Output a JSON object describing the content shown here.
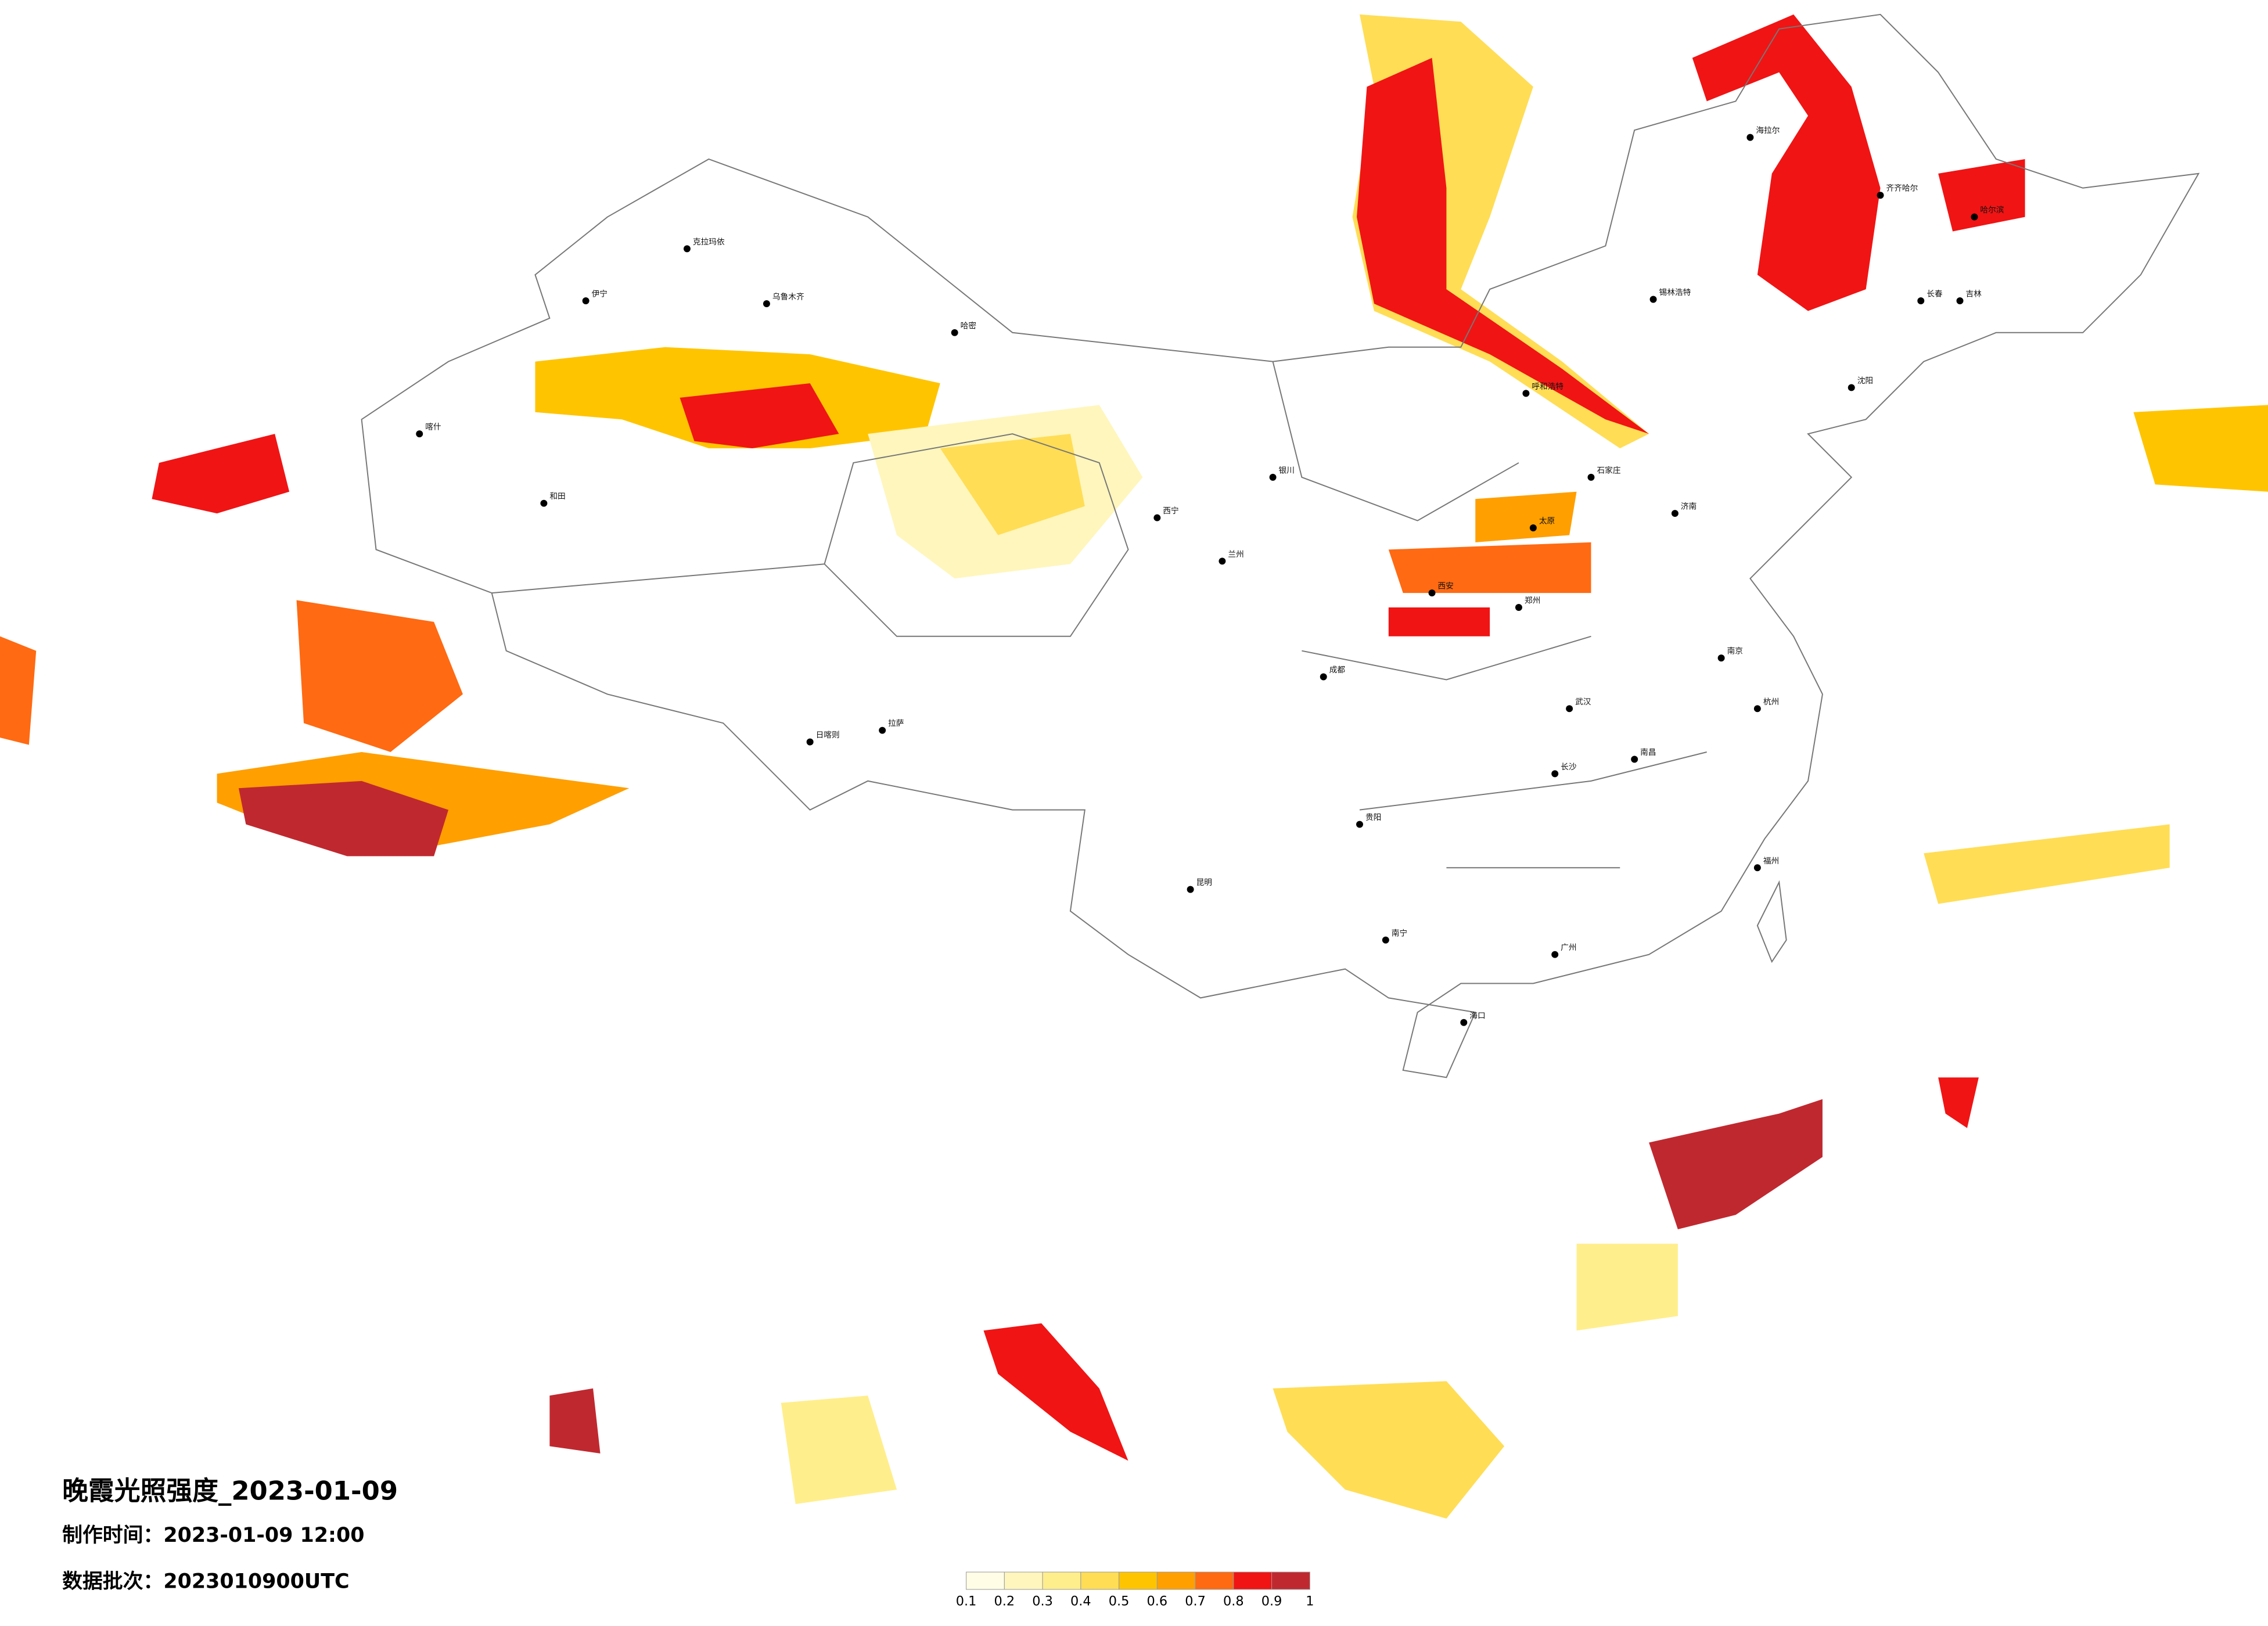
{
  "title": "晚霞光照强度_2023-01-09",
  "made_time": "制作时间：2023-01-09 12:00",
  "batch": "数据批次：2023010900UTC",
  "legend": {
    "colors": [
      "#fffde6",
      "#fff6bd",
      "#ffee8c",
      "#ffdd55",
      "#ffc400",
      "#ff9f00",
      "#ff6a12",
      "#f01414",
      "#c0282f"
    ],
    "ticks": [
      0.1,
      0.2,
      0.3,
      0.4,
      0.5,
      0.6,
      0.7,
      0.8,
      0.9,
      1
    ]
  },
  "cities": [
    "克拉玛依",
    "乌鲁木齐",
    "伊宁",
    "和田",
    "哈密",
    "喀什",
    "拉萨",
    "日喀则",
    "西宁",
    "兰州",
    "海拉尔",
    "齐齐哈尔",
    "哈尔滨",
    "长春",
    "吉林",
    "锡林浩特",
    "呼和浩特",
    "石家庄",
    "西安",
    "成都",
    "贵阳",
    "长沙",
    "南宁",
    "广州",
    "福州",
    "海口",
    "南昌",
    "武汉",
    "郑州",
    "济南",
    "南京",
    "杭州",
    "昆明",
    "银川",
    "沈阳",
    "太原"
  ]
}
